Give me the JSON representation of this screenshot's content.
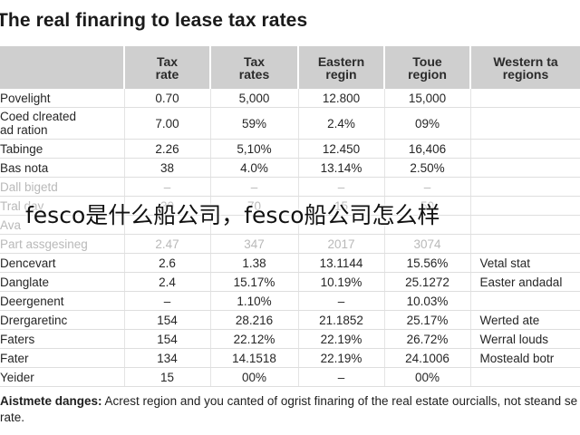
{
  "title": "The real finaring to lease tax rates",
  "table": {
    "headers": [
      "",
      "Tax\nrate",
      "Tax\nrates",
      "Eastern\nregin",
      "Toue\nregion",
      "Western ta\nregions"
    ],
    "rows": [
      {
        "cells": [
          "Povelight",
          "0.70",
          "5,000",
          "12.800",
          "15,000",
          ""
        ]
      },
      {
        "cells": [
          "Coed clreated\nad ration",
          "7.00",
          "59%",
          "2.4%",
          "09%",
          ""
        ],
        "tall": true
      },
      {
        "cells": [
          "Tabinge",
          "2.26",
          "5,10%",
          "12.450",
          "16,406",
          ""
        ]
      },
      {
        "cells": [
          "Bas nota",
          "38",
          "4.0%",
          "13.14%",
          "2.50%",
          ""
        ]
      },
      {
        "cells": [
          "Dall bigetd",
          "–",
          "–",
          "–",
          "–",
          ""
        ],
        "faded": true
      },
      {
        "cells": [
          "Tral day",
          "30",
          "70",
          "15",
          "50",
          ""
        ],
        "faded": true
      },
      {
        "cells": [
          "Ava",
          "",
          "",
          "",
          "",
          ""
        ],
        "faded": true
      },
      {
        "cells": [
          "Part assgesineg",
          "2.47",
          "347",
          "2017",
          "3074",
          ""
        ],
        "faded": true
      },
      {
        "cells": [
          "Dencevart",
          "2.6",
          "1.38",
          "13.1144",
          "15.56%",
          "Vetal stat"
        ]
      },
      {
        "cells": [
          "Danglate",
          "2.4",
          "15.17%",
          "10.19%",
          "25.1272",
          "Easter andadal"
        ]
      },
      {
        "cells": [
          "Deergenent",
          "–",
          "1.10%",
          "–",
          "10.03%",
          ""
        ]
      },
      {
        "cells": [
          "Drergaretinc",
          "154",
          "28.216",
          "21.1852",
          "25.17%",
          "Werted ate"
        ]
      },
      {
        "cells": [
          "Faters",
          "154",
          "22.12%",
          "22.19%",
          "26.72%",
          "Werral louds"
        ]
      },
      {
        "cells": [
          "Fater",
          "134",
          "14.1518",
          "22.19%",
          "24.1006",
          "Mosteald botr"
        ]
      },
      {
        "cells": [
          "Yeider",
          "15",
          "00%",
          "–",
          "00%",
          ""
        ]
      }
    ]
  },
  "overlay_caption": "fesco是什么船公司，fesco船公司怎么样",
  "footnote": {
    "label": "Aistmete danges:",
    "text": " Acrest region and you canted of ogrist finaring of the real estate ourcialls, not steand se rate."
  }
}
